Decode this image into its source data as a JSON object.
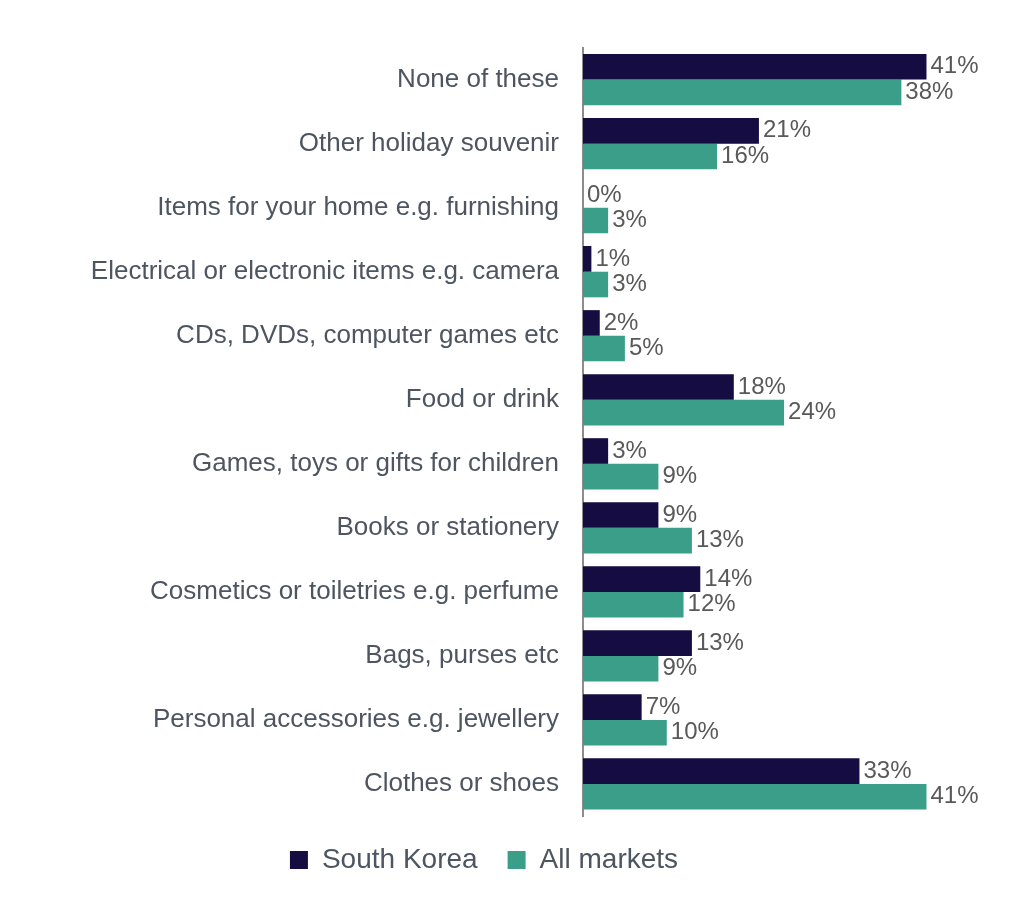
{
  "chart_data": {
    "type": "bar",
    "orientation": "horizontal",
    "categories": [
      "None of these",
      "Other holiday souvenir",
      "Items for your home e.g. furnishing",
      "Electrical or electronic items e.g. camera",
      "CDs, DVDs, computer games etc",
      "Food or drink",
      "Games, toys or gifts for children",
      "Books or stationery",
      "Cosmetics or toiletries e.g. perfume",
      "Bags, purses etc",
      "Personal accessories e.g. jewellery",
      "Clothes or shoes"
    ],
    "series": [
      {
        "name": "South Korea",
        "color": "#150c42",
        "values": [
          41,
          21,
          0,
          1,
          2,
          18,
          3,
          9,
          14,
          13,
          7,
          33
        ],
        "value_labels": [
          "41%",
          "21%",
          "0%",
          "1%",
          "2%",
          "18%",
          "3%",
          "9%",
          "14%",
          "13%",
          "7%",
          "33%"
        ]
      },
      {
        "name": "All markets",
        "color": "#3a9e88",
        "values": [
          38,
          16,
          3,
          3,
          5,
          24,
          9,
          13,
          12,
          9,
          10,
          41
        ],
        "value_labels": [
          "38%",
          "16%",
          "3%",
          "3%",
          "5%",
          "24%",
          "9%",
          "13%",
          "12%",
          "9%",
          "10%",
          "41%"
        ]
      }
    ],
    "legend": "bottom"
  }
}
